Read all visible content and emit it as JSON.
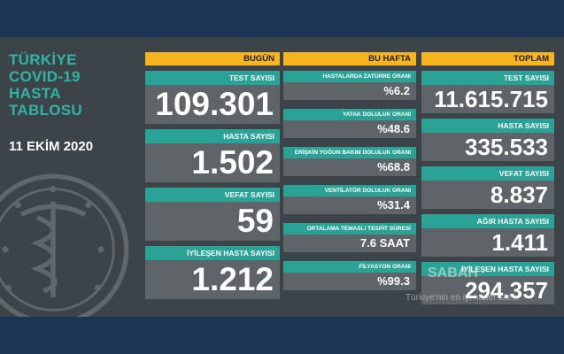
{
  "header": {
    "title_lines": [
      "TÜRKİYE",
      "COVID-19",
      "HASTA",
      "TABLOSU"
    ],
    "date": "11 EKİM 2020"
  },
  "today": {
    "heading": "BUGÜN",
    "cards": [
      {
        "label": "TEST SAYISI",
        "value": "109.301"
      },
      {
        "label": "HASTA SAYISI",
        "value": "1.502"
      },
      {
        "label": "VEFAT SAYISI",
        "value": "59"
      },
      {
        "label": "İYİLEŞEN HASTA SAYISI",
        "value": "1.212"
      }
    ]
  },
  "week": {
    "heading": "BU HAFTA",
    "cards": [
      {
        "label": "HASTALARDA ZATÜRRE ORANI",
        "value": "%6.2"
      },
      {
        "label": "YATAK DOLULUK ORANI",
        "value": "%48.6"
      },
      {
        "label": "ERİŞKİN YOĞUN BAKIM DOLULUK ORANI",
        "value": "%68.8"
      },
      {
        "label": "VENTİLATÖR DOLULUK ORANI",
        "value": "%31.4"
      },
      {
        "label": "ORTALAMA TEMASLI TESPİT SÜRESİ",
        "value": "7.6 SAAT"
      },
      {
        "label": "FİLYASYON ORANI",
        "value": "%99.3"
      }
    ]
  },
  "total": {
    "heading": "TOPLAM",
    "cards": [
      {
        "label": "TEST SAYISI",
        "value": "11.615.715"
      },
      {
        "label": "HASTA SAYISI",
        "value": "335.533"
      },
      {
        "label": "VEFAT SAYISI",
        "value": "8.837"
      },
      {
        "label": "AĞIR HASTA SAYISI",
        "value": "1.411"
      },
      {
        "label": "İYİLEŞEN HASTA SAYISI",
        "value": "294.357"
      }
    ]
  },
  "watermark": {
    "brand": "SABAH",
    "tagline": "Türkiye'nin en iyi haber sitesi"
  },
  "colors": {
    "heading_bg": "#f6b51e",
    "label_bg": "#2aa396",
    "value_bg": "#5f6468",
    "title": "#2fb5a6"
  }
}
